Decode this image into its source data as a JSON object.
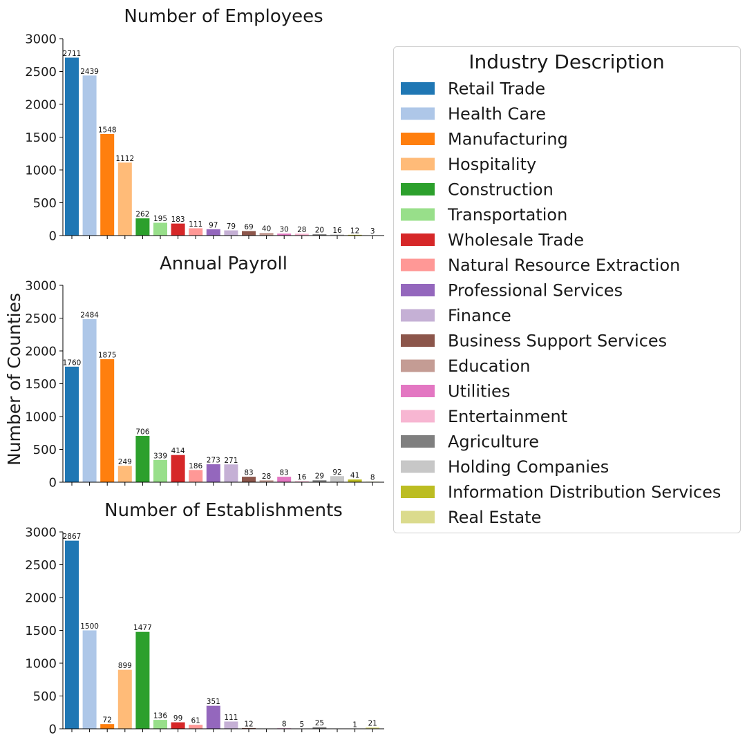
{
  "chart_data": {
    "type": "bar",
    "ylabel": "Number of Counties",
    "ylim": [
      0,
      3000
    ],
    "yticks": [
      0,
      500,
      1000,
      1500,
      2000,
      2500,
      3000
    ],
    "legend": {
      "title": "Industry Description",
      "placement": "right"
    },
    "categories": [
      "Retail Trade",
      "Health Care",
      "Manufacturing",
      "Hospitality",
      "Construction",
      "Transportation",
      "Wholesale Trade",
      "Natural Resource Extraction",
      "Professional Services",
      "Finance",
      "Business Support Services",
      "Education",
      "Utilities",
      "Entertainment",
      "Agriculture",
      "Holding Companies",
      "Information Distribution Services",
      "Real Estate"
    ],
    "colors": [
      "#1f77b4",
      "#aec7e8",
      "#ff7f0e",
      "#ffbb78",
      "#2ca02c",
      "#98df8a",
      "#d62728",
      "#ff9896",
      "#9467bd",
      "#c5b0d5",
      "#8c564b",
      "#c49c94",
      "#e377c2",
      "#f7b6d2",
      "#7f7f7f",
      "#c7c7c7",
      "#bcbd22",
      "#dbdb8d"
    ],
    "panels": [
      {
        "title": "Number of Employees",
        "values": [
          2711,
          2439,
          1548,
          1112,
          262,
          195,
          183,
          111,
          97,
          79,
          69,
          40,
          30,
          28,
          20,
          16,
          12,
          3
        ]
      },
      {
        "title": "Annual Payroll",
        "values": [
          1760,
          2484,
          1875,
          249,
          706,
          339,
          414,
          186,
          273,
          271,
          83,
          28,
          83,
          16,
          29,
          92,
          41,
          8
        ]
      },
      {
        "title": "Number of Establishments",
        "values": [
          2867,
          1500,
          72,
          899,
          1477,
          136,
          99,
          61,
          351,
          111,
          12,
          null,
          8,
          5,
          25,
          null,
          1,
          21
        ]
      }
    ]
  }
}
